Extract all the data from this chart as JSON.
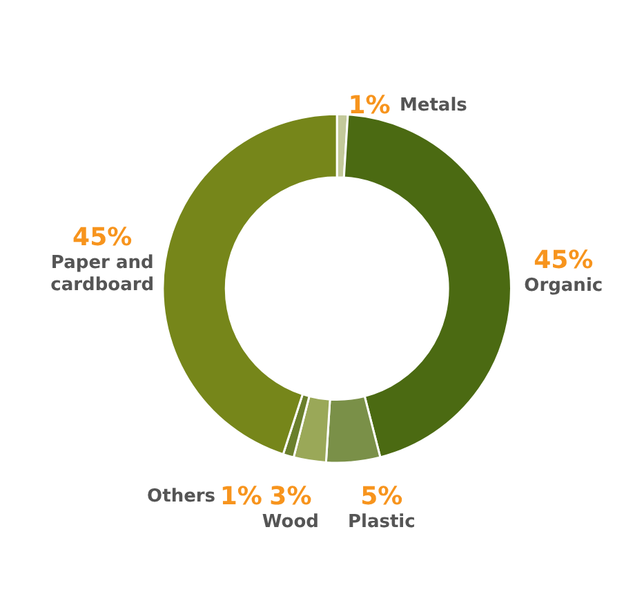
{
  "chart_data": {
    "type": "donut",
    "categories": [
      "Metals",
      "Organic",
      "Plastic",
      "Wood",
      "Others",
      "Paper and cardboard"
    ],
    "values": [
      1,
      45,
      5,
      3,
      1,
      45
    ],
    "value_labels": [
      "1%",
      "45%",
      "5%",
      "3%",
      "1%",
      "45%"
    ],
    "colors": [
      "#c3c99a",
      "#4b6a12",
      "#7a9048",
      "#9aa858",
      "#6a7f2c",
      "#76861a"
    ]
  }
}
